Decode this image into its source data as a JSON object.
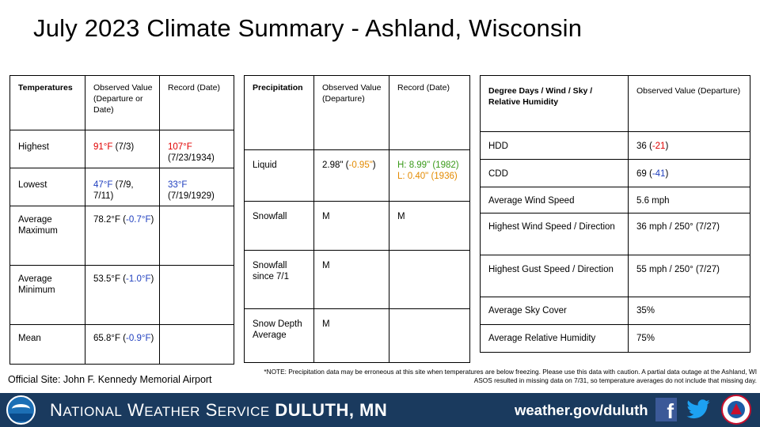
{
  "title": "July 2023 Climate Summary - Ashland, Wisconsin",
  "temperatures": {
    "headers": [
      "Temperatures",
      "Observed Value (Departure or Date)",
      "Record (Date)"
    ],
    "rows": [
      {
        "label": "Highest",
        "observed": "91°F",
        "observed_note": " (7/3)",
        "record": "107°F",
        "record_note": "(7/23/1934)"
      },
      {
        "label": "Lowest",
        "observed": "47°F",
        "observed_note": " (7/9, 7/11)",
        "record": "33°F",
        "record_note": "(7/19/1929)"
      },
      {
        "label": "Average Maximum",
        "observed_main": "78.2°F (",
        "observed_dep": "-0.7°F",
        "observed_end": ")"
      },
      {
        "label": "Average Minimum",
        "observed_main": "53.5°F (",
        "observed_dep": "-1.0°F",
        "observed_end": ")"
      },
      {
        "label": "Mean",
        "observed_main": "65.8°F (",
        "observed_dep": "-0.9°F",
        "observed_end": ")"
      }
    ]
  },
  "precipitation": {
    "headers": [
      "Precipitation",
      "Observed Value (Departure)",
      "Record (Date)"
    ],
    "rows": [
      {
        "label": "Liquid",
        "observed_main": "2.98\" (",
        "observed_dep": "-0.95\"",
        "observed_end": ")",
        "record_high": "H: 8.99\" (1982)",
        "record_low": "L: 0.40\" (1936)"
      },
      {
        "label": "Snowfall",
        "observed": "M",
        "record": "M"
      },
      {
        "label": "Snowfall since 7/1",
        "observed": "M",
        "record": ""
      },
      {
        "label": "Snow Depth Average",
        "observed": "M",
        "record": ""
      }
    ]
  },
  "degree_days": {
    "headers": [
      "Degree Days / Wind / Sky / Relative Humidity",
      "Observed Value (Departure)"
    ],
    "rows": [
      {
        "label": "HDD",
        "value_main": "36 (",
        "value_dep": "-21",
        "value_end": ")"
      },
      {
        "label": "CDD",
        "value_main": "69 (",
        "value_dep": "-41",
        "value_end": ")"
      },
      {
        "label": "Average Wind Speed",
        "value": "5.6 mph"
      },
      {
        "label": "Highest Wind Speed / Direction",
        "value": "36 mph / 250° (7/27)"
      },
      {
        "label": "Highest Gust Speed / Direction",
        "value": "55 mph / 250° (7/27)"
      },
      {
        "label": "Average Sky Cover",
        "value": "35%"
      },
      {
        "label": "Average Relative Humidity",
        "value": "75%"
      }
    ]
  },
  "official_site": "Official Site: John F. Kennedy Memorial Airport",
  "note": "*NOTE: Precipitation data may be erroneous at this site when temperatures are below freezing. Please use this data with caution. A partial data outage at the Ashland, WI ASOS resulted in missing data on 7/31, so temperature averages do not include that missing day.",
  "footer": {
    "nws_N": "N",
    "nws_ational": "ATIONAL",
    "nws_W": "W",
    "nws_eather": "EATHER",
    "nws_S": "S",
    "nws_ervice": "ERVICE",
    "office": "DULUTH, MN",
    "url": "weather.gov/duluth",
    "facebook_glyph": "f"
  },
  "colors": {
    "red": "#e00000",
    "blue": "#1f3fbf",
    "orange": "#e38a00",
    "green": "#3a9a1a",
    "footer_bg": "#1a3a5e"
  },
  "icons": [
    "noaa-logo-icon",
    "facebook-icon",
    "twitter-icon",
    "nws-logo-icon"
  ]
}
